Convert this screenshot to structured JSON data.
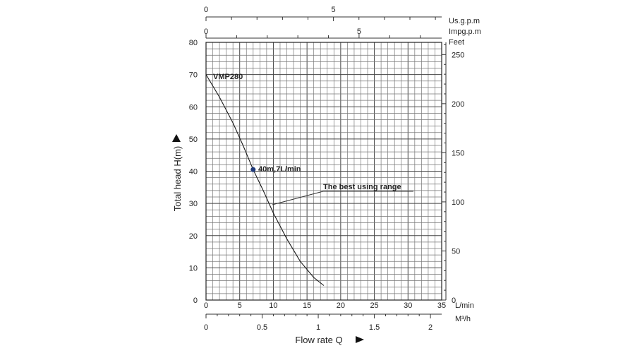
{
  "chart_data": {
    "type": "line",
    "title": "",
    "series": [
      {
        "name": "VMP280",
        "x": [
          0,
          2,
          4,
          5.5,
          7,
          8.5,
          10,
          12,
          14,
          16,
          17.5
        ],
        "y": [
          70,
          63,
          55,
          48,
          40.5,
          34,
          27,
          19,
          12,
          7,
          4.5
        ]
      }
    ],
    "operating_point": {
      "x": 7,
      "y": 40.5,
      "label": "40m,7L/min"
    },
    "annotation": {
      "label": "The best using range"
    },
    "x_axis": {
      "label": "Flow rate Q",
      "unit": "L/min",
      "range": [
        0,
        35
      ],
      "ticks": [
        "0",
        "5",
        "10",
        "15",
        "20",
        "25",
        "30",
        "35"
      ]
    },
    "x_axis_m3h": {
      "unit": "M³/h",
      "ticks": [
        "0",
        "0.5",
        "1",
        "1.5",
        "2"
      ]
    },
    "x_axis_usgpm": {
      "unit": "Us.g.p.m",
      "ticks": [
        "0",
        "5"
      ]
    },
    "x_axis_impgpm": {
      "unit": "Impg.p.m",
      "ticks": [
        "0",
        "5"
      ]
    },
    "y_axis": {
      "label": "Total head H(m)",
      "range": [
        0,
        80
      ],
      "ticks": [
        "0",
        "10",
        "20",
        "30",
        "40",
        "50",
        "60",
        "70",
        "80"
      ]
    },
    "y_axis_feet": {
      "unit": "Feet",
      "ticks": [
        "0",
        "50",
        "100",
        "150",
        "200",
        "250"
      ]
    },
    "grid": true,
    "legend": "none"
  }
}
